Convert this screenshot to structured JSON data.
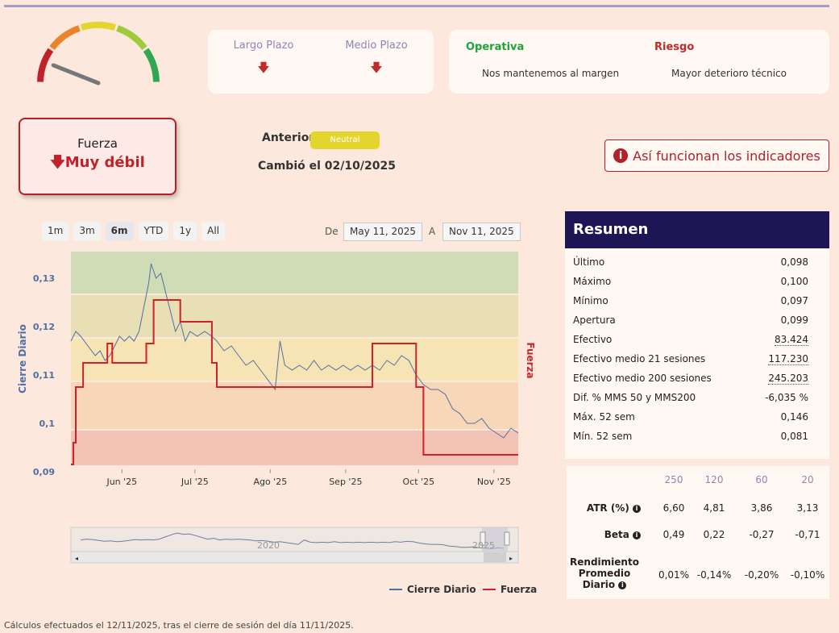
{
  "header": {
    "accent": "#a89bc9"
  },
  "gauge": {
    "needle_fraction": 0.12,
    "colors": [
      "#c0222a",
      "#e8852a",
      "#e4d42e",
      "#9ecb3c",
      "#2fa84f"
    ]
  },
  "horizons": [
    {
      "label": "Largo Plazo",
      "icon": "arrow-down-icon"
    },
    {
      "label": "Medio Plazo",
      "icon": "arrow-down-icon"
    }
  ],
  "operativa": {
    "title": "Operativa",
    "text": "Nos mantenemos al margen",
    "color": "#1fa23a"
  },
  "riesgo": {
    "title": "Riesgo",
    "text": "Mayor deterioro técnico",
    "color": "#c02a2a"
  },
  "fuerza": {
    "title": "Fuerza",
    "value": "Muy débil",
    "icon": "arrow-down-icon"
  },
  "anterior": {
    "label": "Anterior",
    "badge": "Neutral",
    "changed": "Cambió el 02/10/2025"
  },
  "info_button": {
    "label": "Así funcionan los indicadores",
    "icon": "info-icon"
  },
  "range": {
    "buttons": [
      "1m",
      "3m",
      "6m",
      "YTD",
      "1y",
      "All"
    ],
    "selected": "6m",
    "from_label": "De",
    "from": "May 11, 2025",
    "to_label": "A",
    "to": "Nov 11, 2025"
  },
  "chart_data": {
    "type": "line",
    "ylabel": "Cierre Diario",
    "y2label": "Fuerza",
    "ylim": [
      0.09,
      0.135
    ],
    "yticks": [
      "0,13",
      "0,12",
      "0,11",
      "0,1",
      "0,09"
    ],
    "yticks_values": [
      0.13,
      0.12,
      0.11,
      0.1,
      0.09
    ],
    "xticks": [
      "Jun '25",
      "Jul '25",
      "Ago '25",
      "Sep '25",
      "Oct '25",
      "Nov '25"
    ],
    "xticks_dates": [
      "2025-06-01",
      "2025-07-01",
      "2025-08-01",
      "2025-09-01",
      "2025-10-01",
      "2025-11-01"
    ],
    "xlim": [
      "2025-05-11",
      "2025-11-11"
    ],
    "bands": [
      {
        "from": 0.1265,
        "to": 0.1355,
        "color": "#cfdcb6"
      },
      {
        "from": 0.1175,
        "to": 0.1265,
        "color": "#e8e0b4"
      },
      {
        "from": 0.1085,
        "to": 0.1175,
        "color": "#f6e4b4"
      },
      {
        "from": 0.0985,
        "to": 0.1085,
        "color": "#f8d6b8"
      },
      {
        "from": 0.091,
        "to": 0.0985,
        "color": "#f2c2b4"
      }
    ],
    "series": [
      {
        "name": "Cierre Diario",
        "color": "#4f6fa6",
        "points": [
          [
            "2025-05-11",
            0.117
          ],
          [
            "2025-05-13",
            0.119
          ],
          [
            "2025-05-15",
            0.118
          ],
          [
            "2025-05-18",
            0.116
          ],
          [
            "2025-05-21",
            0.114
          ],
          [
            "2025-05-23",
            0.115
          ],
          [
            "2025-05-25",
            0.113
          ],
          [
            "2025-05-27",
            0.114
          ],
          [
            "2025-05-29",
            0.116
          ],
          [
            "2025-05-31",
            0.118
          ],
          [
            "2025-06-02",
            0.117
          ],
          [
            "2025-06-04",
            0.118
          ],
          [
            "2025-06-06",
            0.117
          ],
          [
            "2025-06-08",
            0.119
          ],
          [
            "2025-06-10",
            0.124
          ],
          [
            "2025-06-12",
            0.129
          ],
          [
            "2025-06-13",
            0.133
          ],
          [
            "2025-06-15",
            0.13
          ],
          [
            "2025-06-17",
            0.131
          ],
          [
            "2025-06-19",
            0.127
          ],
          [
            "2025-06-21",
            0.123
          ],
          [
            "2025-06-23",
            0.119
          ],
          [
            "2025-06-25",
            0.121
          ],
          [
            "2025-06-27",
            0.117
          ],
          [
            "2025-06-29",
            0.119
          ],
          [
            "2025-07-02",
            0.118
          ],
          [
            "2025-07-05",
            0.119
          ],
          [
            "2025-07-08",
            0.118
          ],
          [
            "2025-07-10",
            0.117
          ],
          [
            "2025-07-13",
            0.115
          ],
          [
            "2025-07-16",
            0.116
          ],
          [
            "2025-07-19",
            0.114
          ],
          [
            "2025-07-22",
            0.112
          ],
          [
            "2025-07-25",
            0.113
          ],
          [
            "2025-07-28",
            0.111
          ],
          [
            "2025-07-31",
            0.109
          ],
          [
            "2025-08-03",
            0.107
          ],
          [
            "2025-08-05",
            0.117
          ],
          [
            "2025-08-07",
            0.112
          ],
          [
            "2025-08-10",
            0.111
          ],
          [
            "2025-08-13",
            0.112
          ],
          [
            "2025-08-16",
            0.111
          ],
          [
            "2025-08-19",
            0.113
          ],
          [
            "2025-08-22",
            0.111
          ],
          [
            "2025-08-25",
            0.112
          ],
          [
            "2025-08-28",
            0.111
          ],
          [
            "2025-08-31",
            0.112
          ],
          [
            "2025-09-03",
            0.111
          ],
          [
            "2025-09-06",
            0.112
          ],
          [
            "2025-09-09",
            0.111
          ],
          [
            "2025-09-12",
            0.112
          ],
          [
            "2025-09-15",
            0.111
          ],
          [
            "2025-09-18",
            0.113
          ],
          [
            "2025-09-21",
            0.112
          ],
          [
            "2025-09-24",
            0.114
          ],
          [
            "2025-09-27",
            0.113
          ],
          [
            "2025-09-30",
            0.11
          ],
          [
            "2025-10-03",
            0.108
          ],
          [
            "2025-10-06",
            0.107
          ],
          [
            "2025-10-09",
            0.107
          ],
          [
            "2025-10-12",
            0.106
          ],
          [
            "2025-10-15",
            0.103
          ],
          [
            "2025-10-18",
            0.102
          ],
          [
            "2025-10-21",
            0.1
          ],
          [
            "2025-10-24",
            0.1
          ],
          [
            "2025-10-27",
            0.101
          ],
          [
            "2025-10-30",
            0.099
          ],
          [
            "2025-11-02",
            0.098
          ],
          [
            "2025-11-05",
            0.097
          ],
          [
            "2025-11-08",
            0.099
          ],
          [
            "2025-11-11",
            0.098
          ]
        ]
      },
      {
        "name": "Fuerza",
        "color": "#d0202a",
        "points": [
          [
            "2025-05-11",
            0.0915
          ],
          [
            "2025-05-12",
            0.0915
          ],
          [
            "2025-05-12",
            0.096
          ],
          [
            "2025-05-13",
            0.096
          ],
          [
            "2025-05-13",
            0.1075
          ],
          [
            "2025-05-16",
            0.1075
          ],
          [
            "2025-05-16",
            0.1125
          ],
          [
            "2025-05-26",
            0.1125
          ],
          [
            "2025-05-26",
            0.1165
          ],
          [
            "2025-05-28",
            0.1165
          ],
          [
            "2025-05-28",
            0.1125
          ],
          [
            "2025-06-11",
            0.1125
          ],
          [
            "2025-06-11",
            0.1165
          ],
          [
            "2025-06-14",
            0.1165
          ],
          [
            "2025-06-14",
            0.1255
          ],
          [
            "2025-06-25",
            0.1255
          ],
          [
            "2025-06-25",
            0.121
          ],
          [
            "2025-07-08",
            0.121
          ],
          [
            "2025-07-08",
            0.1125
          ],
          [
            "2025-07-10",
            0.1125
          ],
          [
            "2025-07-10",
            0.1075
          ],
          [
            "2025-09-12",
            0.1075
          ],
          [
            "2025-09-12",
            0.1165
          ],
          [
            "2025-09-30",
            0.1165
          ],
          [
            "2025-09-30",
            0.1075
          ],
          [
            "2025-10-03",
            0.1075
          ],
          [
            "2025-10-03",
            0.0935
          ],
          [
            "2025-11-11",
            0.0935
          ]
        ]
      }
    ],
    "navigator_label": "2020",
    "navigator_label2": "2025"
  },
  "legend": [
    {
      "name": "Cierre Diario",
      "color": "#4f6fa6"
    },
    {
      "name": "Fuerza",
      "color": "#d0202a"
    }
  ],
  "resumen": {
    "title": "Resumen",
    "rows": [
      {
        "label": "Último",
        "value": "0,098",
        "dotted": false
      },
      {
        "label": "Máximo",
        "value": "0,100",
        "dotted": false
      },
      {
        "label": "Mínimo",
        "value": "0,097",
        "dotted": false
      },
      {
        "label": "Apertura",
        "value": "0,099",
        "dotted": false
      },
      {
        "label": "Efectivo",
        "value": "83.424",
        "dotted": true
      },
      {
        "label": "Efectivo medio 21 sesiones",
        "value": "117.230",
        "dotted": true
      },
      {
        "label": "Efectivo medio 200 sesiones",
        "value": "245.203",
        "dotted": true
      },
      {
        "label": "Dif. % MMS 50 y MMS200",
        "value": "-6,035 %",
        "dotted": false
      },
      {
        "label": "Máx. 52 sem",
        "value": "0,146",
        "dotted": false
      },
      {
        "label": "Mín. 52 sem",
        "value": "0,081",
        "dotted": false
      }
    ]
  },
  "stats": {
    "periods": [
      "250",
      "120",
      "60",
      "20"
    ],
    "rows": [
      {
        "label": "ATR (%)",
        "values": [
          "6,60",
          "4,81",
          "3,86",
          "3,13"
        ]
      },
      {
        "label": "Beta",
        "values": [
          "0,49",
          "0,22",
          "-0,27",
          "-0,71"
        ]
      },
      {
        "label": "Rendimiento Promedio Diario",
        "values": [
          "0,01%",
          "-0,14%",
          "-0,20%",
          "-0,10%"
        ]
      }
    ]
  },
  "footnote": "Cálculos efectuados el 12/11/2025, tras el cierre de sesión del día 11/11/2025."
}
